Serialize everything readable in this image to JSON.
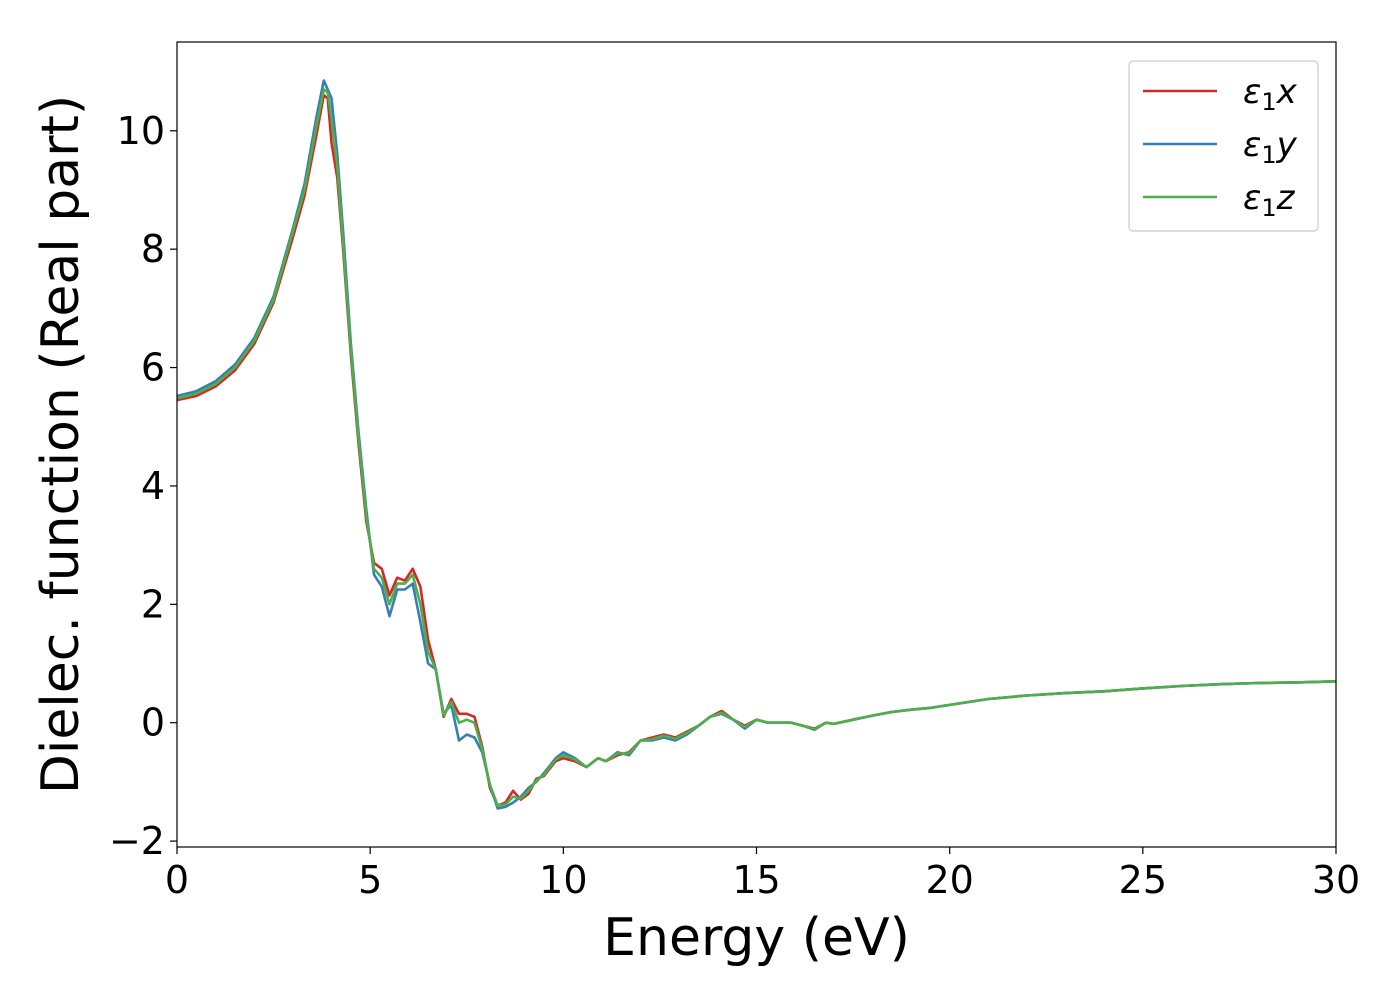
{
  "chart_data": {
    "type": "line",
    "xlabel": "Energy (eV)",
    "ylabel": "Dielec. function (Real part)",
    "xlim": [
      0,
      30
    ],
    "ylim": [
      -2.1,
      11.5
    ],
    "xticks": [
      0,
      5,
      10,
      15,
      20,
      25,
      30
    ],
    "yticks": [
      -2,
      0,
      2,
      4,
      6,
      8,
      10
    ],
    "xtick_labels": [
      "0",
      "5",
      "10",
      "15",
      "20",
      "25",
      "30"
    ],
    "ytick_labels": [
      "−2",
      "0",
      "2",
      "4",
      "6",
      "8",
      "10"
    ],
    "grid": false,
    "legend_position": "top-right",
    "series": [
      {
        "name": "ε1x",
        "legend_main": "ε",
        "legend_sub": "1",
        "legend_suffix": "x",
        "color": "#d62728",
        "x": [
          0,
          0.5,
          1,
          1.5,
          2,
          2.5,
          3,
          3.3,
          3.6,
          3.8,
          3.9,
          4.0,
          4.15,
          4.3,
          4.5,
          4.7,
          4.9,
          5.1,
          5.3,
          5.5,
          5.7,
          5.9,
          6.1,
          6.3,
          6.5,
          6.7,
          6.9,
          7.1,
          7.3,
          7.5,
          7.7,
          7.9,
          8.1,
          8.3,
          8.5,
          8.7,
          8.9,
          9.1,
          9.3,
          9.5,
          9.8,
          10.0,
          10.3,
          10.6,
          10.9,
          11.1,
          11.4,
          11.7,
          12.0,
          12.3,
          12.6,
          12.9,
          13.2,
          13.5,
          13.8,
          14.1,
          14.4,
          14.7,
          15.0,
          15.3,
          15.6,
          15.9,
          16.2,
          16.5,
          16.8,
          17.0,
          17.5,
          18,
          18.5,
          19,
          19.5,
          20,
          21,
          22,
          23,
          24,
          25,
          26,
          27,
          28,
          29,
          30
        ],
        "y": [
          5.45,
          5.52,
          5.68,
          5.95,
          6.4,
          7.1,
          8.2,
          8.9,
          9.9,
          10.6,
          10.55,
          9.8,
          9.2,
          8.0,
          6.2,
          4.7,
          3.4,
          2.7,
          2.6,
          2.15,
          2.45,
          2.4,
          2.6,
          2.3,
          1.4,
          0.9,
          0.1,
          0.4,
          0.15,
          0.15,
          0.1,
          -0.4,
          -1.1,
          -1.4,
          -1.35,
          -1.15,
          -1.3,
          -1.2,
          -0.95,
          -0.9,
          -0.65,
          -0.6,
          -0.65,
          -0.75,
          -0.6,
          -0.65,
          -0.55,
          -0.5,
          -0.3,
          -0.25,
          -0.2,
          -0.25,
          -0.15,
          -0.05,
          0.1,
          0.2,
          0.05,
          -0.05,
          0.05,
          0.0,
          0.0,
          0.0,
          -0.05,
          -0.1,
          0.0,
          -0.02,
          0.05,
          0.12,
          0.18,
          0.22,
          0.25,
          0.3,
          0.4,
          0.46,
          0.5,
          0.53,
          0.58,
          0.62,
          0.65,
          0.67,
          0.68,
          0.7
        ]
      },
      {
        "name": "ε1y",
        "legend_main": "ε",
        "legend_sub": "1",
        "legend_suffix": "y",
        "color": "#377eb8",
        "x": [
          0,
          0.5,
          1,
          1.5,
          2,
          2.5,
          3,
          3.3,
          3.6,
          3.8,
          3.9,
          4.0,
          4.15,
          4.3,
          4.5,
          4.7,
          4.9,
          5.1,
          5.3,
          5.5,
          5.7,
          5.9,
          6.1,
          6.3,
          6.5,
          6.7,
          6.9,
          7.1,
          7.3,
          7.5,
          7.7,
          7.9,
          8.1,
          8.3,
          8.5,
          8.7,
          8.9,
          9.1,
          9.3,
          9.5,
          9.8,
          10.0,
          10.3,
          10.6,
          10.9,
          11.1,
          11.4,
          11.7,
          12.0,
          12.3,
          12.6,
          12.9,
          13.2,
          13.5,
          13.8,
          14.1,
          14.4,
          14.7,
          15.0,
          15.3,
          15.6,
          15.9,
          16.2,
          16.5,
          16.8,
          17.0,
          17.5,
          18,
          18.5,
          19,
          19.5,
          20,
          21,
          22,
          23,
          24,
          25,
          26,
          27,
          28,
          29,
          30
        ],
        "y": [
          5.52,
          5.6,
          5.77,
          6.05,
          6.5,
          7.2,
          8.35,
          9.1,
          10.2,
          10.85,
          10.7,
          10.55,
          9.6,
          8.3,
          6.4,
          4.9,
          3.6,
          2.5,
          2.3,
          1.8,
          2.25,
          2.25,
          2.35,
          1.7,
          1.0,
          0.9,
          0.15,
          0.3,
          -0.3,
          -0.2,
          -0.25,
          -0.5,
          -1.05,
          -1.45,
          -1.42,
          -1.35,
          -1.25,
          -1.1,
          -1.0,
          -0.85,
          -0.6,
          -0.5,
          -0.6,
          -0.75,
          -0.6,
          -0.65,
          -0.5,
          -0.55,
          -0.3,
          -0.3,
          -0.25,
          -0.3,
          -0.2,
          -0.05,
          0.1,
          0.15,
          0.05,
          -0.1,
          0.05,
          0.0,
          0.0,
          0.0,
          -0.05,
          -0.12,
          0.0,
          -0.02,
          0.05,
          0.12,
          0.18,
          0.22,
          0.25,
          0.3,
          0.4,
          0.46,
          0.5,
          0.53,
          0.58,
          0.62,
          0.65,
          0.67,
          0.68,
          0.7
        ]
      },
      {
        "name": "ε1z",
        "legend_main": "ε",
        "legend_sub": "1",
        "legend_suffix": "z",
        "color": "#4daf4a",
        "x": [
          0,
          0.5,
          1,
          1.5,
          2,
          2.5,
          3,
          3.3,
          3.6,
          3.8,
          3.9,
          4.0,
          4.15,
          4.3,
          4.5,
          4.7,
          4.9,
          5.1,
          5.3,
          5.5,
          5.7,
          5.9,
          6.1,
          6.3,
          6.5,
          6.7,
          6.9,
          7.1,
          7.3,
          7.5,
          7.7,
          7.9,
          8.1,
          8.3,
          8.5,
          8.7,
          8.9,
          9.1,
          9.3,
          9.5,
          9.8,
          10.0,
          10.3,
          10.6,
          10.9,
          11.1,
          11.4,
          11.7,
          12.0,
          12.3,
          12.6,
          12.9,
          13.2,
          13.5,
          13.8,
          14.1,
          14.4,
          14.7,
          15.0,
          15.3,
          15.6,
          15.9,
          16.2,
          16.5,
          16.8,
          17.0,
          17.5,
          18,
          18.5,
          19,
          19.5,
          20,
          21,
          22,
          23,
          24,
          25,
          26,
          27,
          28,
          29,
          30
        ],
        "y": [
          5.48,
          5.56,
          5.72,
          6.0,
          6.45,
          7.15,
          8.3,
          9.0,
          10.05,
          10.7,
          10.65,
          10.2,
          9.4,
          8.1,
          6.3,
          4.8,
          3.5,
          2.6,
          2.45,
          2.0,
          2.35,
          2.35,
          2.5,
          2.0,
          1.2,
          0.9,
          0.12,
          0.35,
          0.0,
          0.05,
          0.0,
          -0.45,
          -1.05,
          -1.4,
          -1.38,
          -1.25,
          -1.28,
          -1.15,
          -0.98,
          -0.88,
          -0.62,
          -0.55,
          -0.62,
          -0.75,
          -0.6,
          -0.65,
          -0.52,
          -0.52,
          -0.3,
          -0.28,
          -0.22,
          -0.27,
          -0.17,
          -0.05,
          0.1,
          0.17,
          0.05,
          -0.07,
          0.05,
          0.0,
          0.0,
          0.0,
          -0.05,
          -0.11,
          0.0,
          -0.02,
          0.05,
          0.12,
          0.18,
          0.22,
          0.25,
          0.3,
          0.4,
          0.46,
          0.5,
          0.53,
          0.58,
          0.62,
          0.65,
          0.67,
          0.68,
          0.7
        ]
      }
    ]
  }
}
